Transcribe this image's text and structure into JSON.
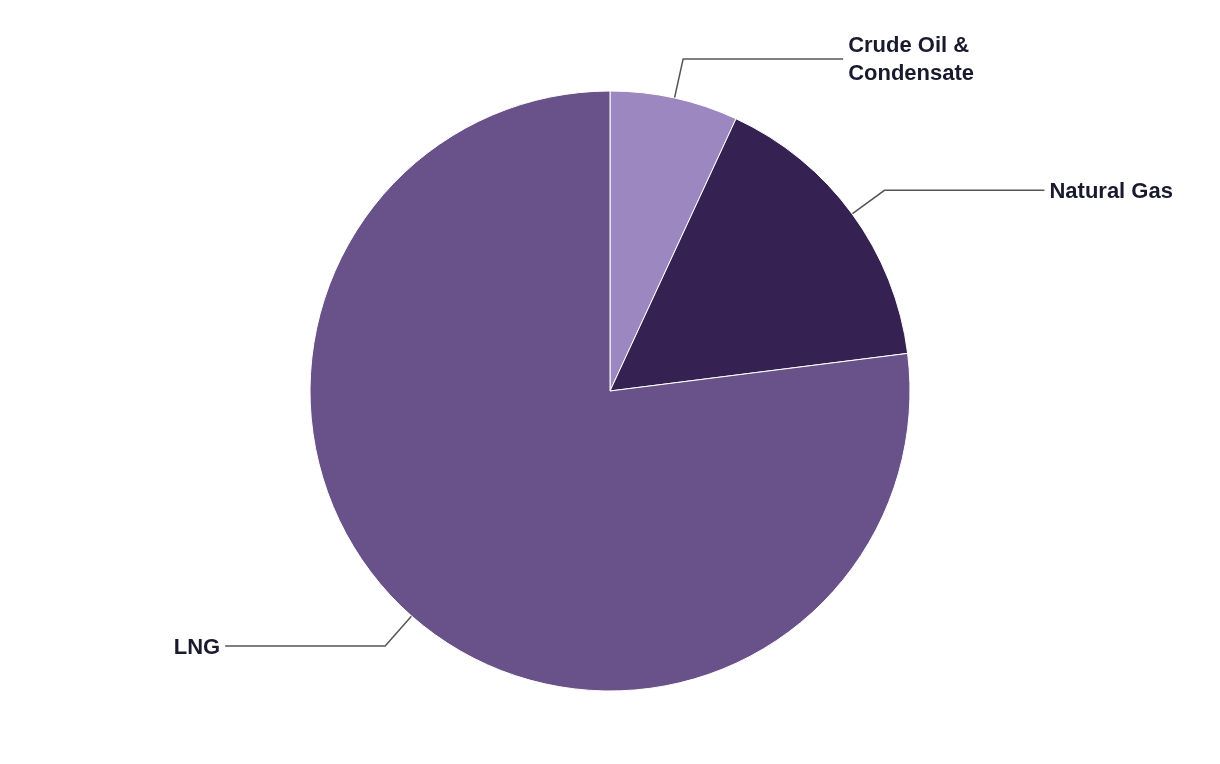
{
  "chart_data": {
    "type": "pie",
    "categories": [
      "Crude Oil & Condensate",
      "Natural Gas",
      "LNG"
    ],
    "values": [
      6.9,
      16.1,
      77.0
    ],
    "colors": [
      "#9d87c0",
      "#352252",
      "#685289"
    ],
    "legend": false
  }
}
